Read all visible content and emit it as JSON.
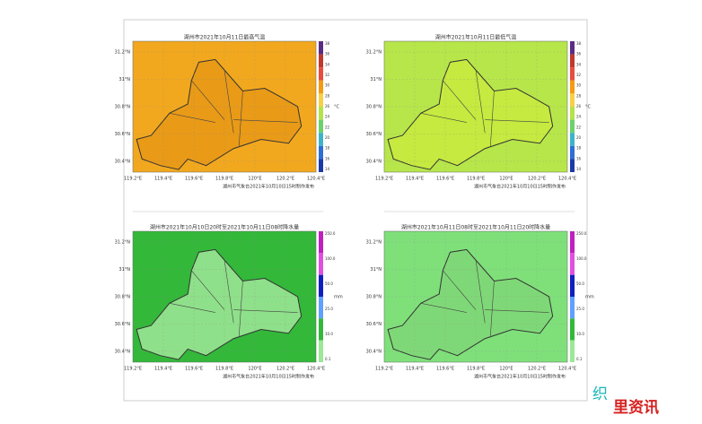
{
  "panels": [
    {
      "title": "湖州市2021年10月11日最高气温",
      "footer": "湖州市气象台2021年10月10日15时制作发布",
      "unit": "°C",
      "colorbar": [
        "38",
        "36",
        "34",
        "32",
        "30",
        "28",
        "26",
        "24",
        "22",
        "20",
        "18",
        "16",
        "14"
      ]
    },
    {
      "title": "湖州市2021年10月11日最低气温",
      "footer": "湖州市气象台2021年10月10日15时制作发布",
      "unit": "°C",
      "colorbar": [
        "38",
        "36",
        "34",
        "32",
        "30",
        "28",
        "26",
        "24",
        "22",
        "20",
        "18",
        "16",
        "14"
      ]
    },
    {
      "title": "湖州市2021年10月10日20时至2021年10月11日08时降水量",
      "footer": "湖州市气象台2021年10月10日15时制作发布",
      "unit": "mm",
      "colorbar": [
        "250.0",
        "100.0",
        "50.0",
        "25.0",
        "10.0",
        "0.1"
      ]
    },
    {
      "title": "湖州市2021年10月11日08时至2021年10月11日20时降水量",
      "footer": "湖州市气象台2021年10月10日15时制作发布",
      "unit": "mm",
      "colorbar": [
        "250.0",
        "100.0",
        "50.0",
        "25.0",
        "10.0",
        "0.1"
      ]
    }
  ],
  "lon_labels": [
    "119.2°E",
    "119.4°E",
    "119.6°E",
    "119.8°E",
    "120°E",
    "120.2°E",
    "120.4°E"
  ],
  "lat_labels": [
    "31.2°N",
    "31°N",
    "30.8°N",
    "30.6°N",
    "30.4°N"
  ],
  "watermark": {
    "left": "织",
    "right": "里资讯"
  }
}
